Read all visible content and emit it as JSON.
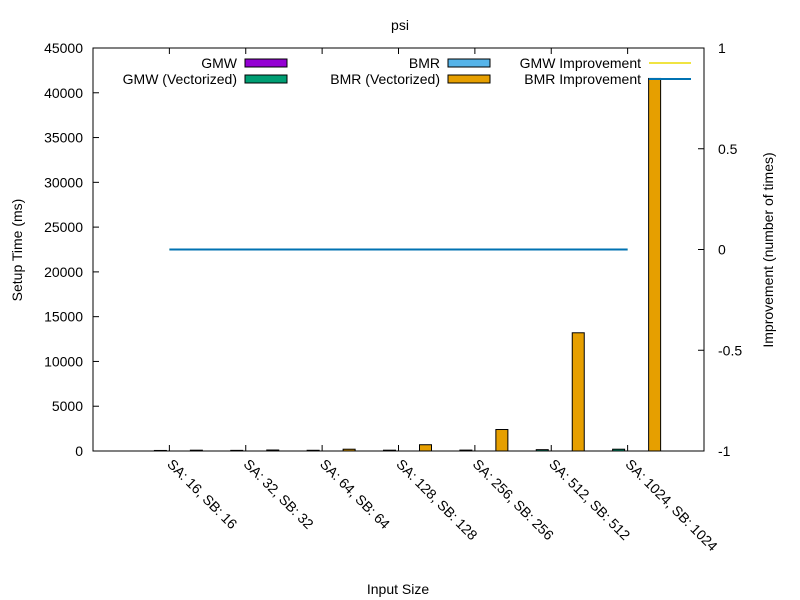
{
  "chart_data": {
    "type": "bar",
    "title": "psi",
    "xlabel": "Input Size",
    "ylabel": "Setup Time (ms)",
    "y2label": "Improvement (number of times)",
    "ylim": [
      0,
      45000
    ],
    "y2lim": [
      -1,
      1
    ],
    "y_ticks": [
      0,
      5000,
      10000,
      15000,
      20000,
      25000,
      30000,
      35000,
      40000,
      45000
    ],
    "y2_ticks": [
      -1,
      -0.5,
      0,
      0.5,
      1
    ],
    "categories": [
      "SA: 16, SB: 16",
      "SA: 32, SB: 32",
      "SA: 64, SB: 64",
      "SA: 128, SB: 128",
      "SA: 256, SB: 256",
      "SA: 512, SB: 512",
      "SA: 1024, SB: 1024"
    ],
    "series": [
      {
        "name": "GMW",
        "color": "#9400d3",
        "axis": "left",
        "type": "bar",
        "values": [
          0,
          0,
          0,
          0,
          0,
          0,
          0
        ]
      },
      {
        "name": "GMW (Vectorized)",
        "color": "#009e73",
        "axis": "left",
        "type": "bar",
        "values": [
          60,
          70,
          80,
          90,
          100,
          150,
          200
        ]
      },
      {
        "name": "BMR",
        "color": "#56b4e9",
        "axis": "left",
        "type": "bar",
        "values": [
          0,
          0,
          0,
          0,
          0,
          0,
          0
        ]
      },
      {
        "name": "BMR (Vectorized)",
        "color": "#e69f00",
        "axis": "left",
        "type": "bar",
        "values": [
          90,
          110,
          200,
          700,
          2400,
          13200,
          41600
        ]
      },
      {
        "name": "GMW Improvement",
        "color": "#f0e442",
        "axis": "right",
        "type": "line",
        "values": [
          0,
          0,
          0,
          0,
          0,
          0,
          0
        ]
      },
      {
        "name": "BMR Improvement",
        "color": "#0072b2",
        "axis": "right",
        "type": "line",
        "values": [
          0,
          0,
          0,
          0,
          0,
          0,
          0
        ]
      }
    ],
    "legend_position": "top",
    "grid": false
  }
}
